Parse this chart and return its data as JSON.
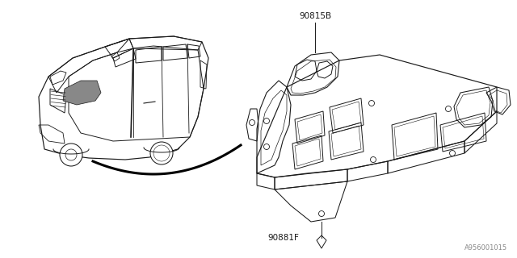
{
  "bg_color": "#ffffff",
  "line_color": "#1a1a1a",
  "fig_width": 6.4,
  "fig_height": 3.2,
  "dpi": 100,
  "watermark": "A956001015",
  "label_90815B": "90815B",
  "label_90881F": "90881F"
}
